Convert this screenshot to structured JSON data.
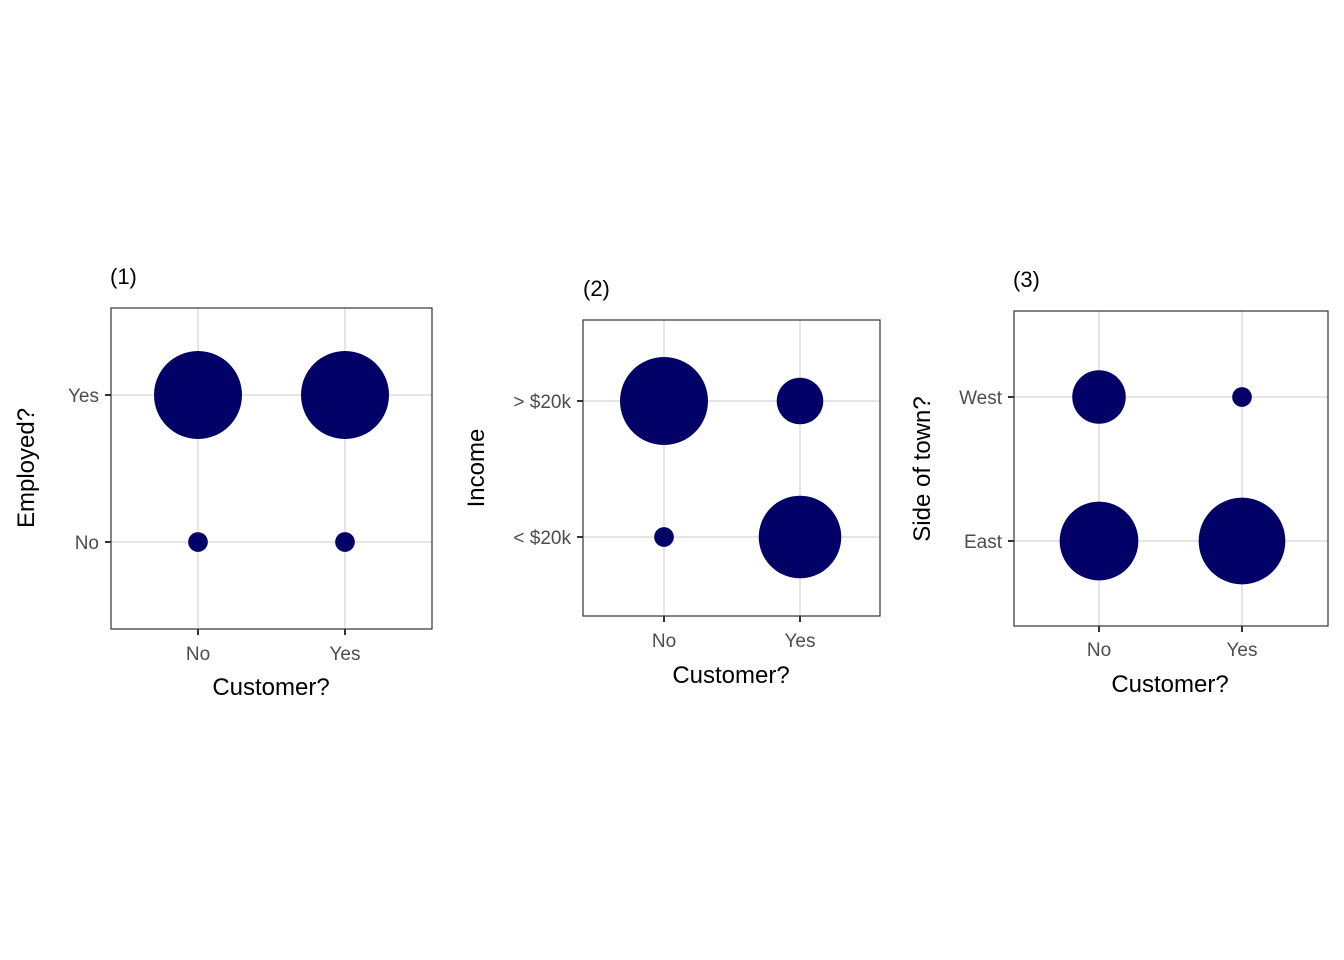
{
  "colors": {
    "point": "#000066",
    "grid": "#e5e5e5",
    "border": "#333333",
    "tick_text": "#4d4d4d"
  },
  "chart_data": [
    {
      "type": "scatter",
      "title": "(1)",
      "xlabel": "Customer?",
      "ylabel": "Employed?",
      "x_categories": [
        "No",
        "Yes"
      ],
      "y_categories": [
        "No",
        "Yes"
      ],
      "points": [
        {
          "x": "No",
          "y": "Yes",
          "size": 1.0
        },
        {
          "x": "Yes",
          "y": "Yes",
          "size": 1.0
        },
        {
          "x": "No",
          "y": "No",
          "size": 0.05
        },
        {
          "x": "Yes",
          "y": "No",
          "size": 0.05
        }
      ],
      "grid": true,
      "legend": "none"
    },
    {
      "type": "scatter",
      "title": "(2)",
      "xlabel": "Customer?",
      "ylabel": "Income",
      "x_categories": [
        "No",
        "Yes"
      ],
      "y_categories": [
        "< $20k",
        "> $20k"
      ],
      "points": [
        {
          "x": "No",
          "y": "> $20k",
          "size": 1.0
        },
        {
          "x": "Yes",
          "y": "> $20k",
          "size": 0.28
        },
        {
          "x": "No",
          "y": "< $20k",
          "size": 0.05
        },
        {
          "x": "Yes",
          "y": "< $20k",
          "size": 0.88
        }
      ],
      "grid": true,
      "legend": "none"
    },
    {
      "type": "scatter",
      "title": "(3)",
      "xlabel": "Customer?",
      "ylabel": "Side of town?",
      "x_categories": [
        "No",
        "Yes"
      ],
      "y_categories": [
        "East",
        "West"
      ],
      "points": [
        {
          "x": "No",
          "y": "West",
          "size": 0.37
        },
        {
          "x": "Yes",
          "y": "West",
          "size": 0.05
        },
        {
          "x": "No",
          "y": "East",
          "size": 0.8
        },
        {
          "x": "Yes",
          "y": "East",
          "size": 0.97
        }
      ],
      "grid": true,
      "legend": "none"
    }
  ]
}
